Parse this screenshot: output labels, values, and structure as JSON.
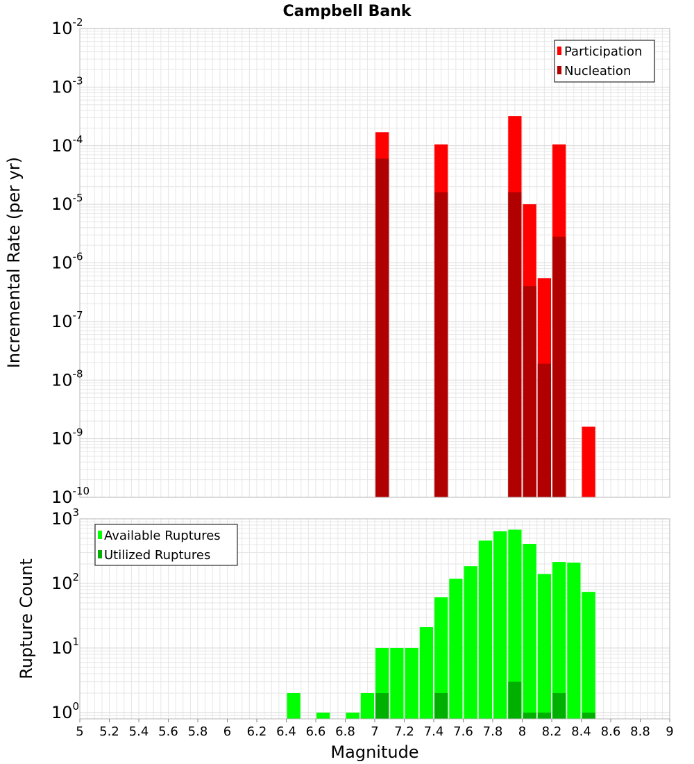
{
  "title": "Campbell Bank",
  "xlabel": "Magnitude",
  "x_ticks": [
    "5",
    "5.2",
    "5.4",
    "5.6",
    "5.8",
    "6",
    "6.2",
    "6.4",
    "6.6",
    "6.8",
    "7",
    "7.2",
    "7.4",
    "7.6",
    "7.8",
    "8",
    "8.2",
    "8.4",
    "8.6",
    "8.8",
    "9"
  ],
  "colors": {
    "participation": "#ff0000",
    "nucleation": "#b00000",
    "available": "#00ff00",
    "utilized": "#00b000",
    "grid": "#e6e6e6",
    "frame": "#b4b4b4"
  },
  "chart_data": [
    {
      "type": "bar",
      "ylabel": "Incremental Rate (per yr)",
      "yscale": "log",
      "xlim": [
        5,
        9
      ],
      "ylim": [
        1e-10,
        0.01
      ],
      "y_ticks_exp": [
        "-10",
        "-9",
        "-8",
        "-7",
        "-6",
        "-5",
        "-4",
        "-3",
        "-2"
      ],
      "grid": true,
      "legend_position": "top-right",
      "bar_width": 0.1,
      "series": [
        {
          "name": "Participation",
          "x": [
            7.05,
            7.45,
            7.95,
            8.05,
            8.15,
            8.25,
            8.45
          ],
          "values": [
            0.00017,
            0.000105,
            0.00032,
            1e-05,
            5.5e-07,
            0.000105,
            1.6e-09
          ]
        },
        {
          "name": "Nucleation",
          "x": [
            7.05,
            7.45,
            7.95,
            8.05,
            8.15,
            8.25
          ],
          "values": [
            6e-05,
            1.6e-05,
            1.6e-05,
            4e-07,
            1.9e-08,
            2.8e-06
          ]
        }
      ]
    },
    {
      "type": "bar",
      "ylabel": "Rupture Count",
      "yscale": "log",
      "xlim": [
        5,
        9
      ],
      "ylim": [
        0.8,
        1000
      ],
      "y_ticks_exp": [
        "0",
        "1",
        "2",
        "3"
      ],
      "grid": true,
      "legend_position": "top-left",
      "bar_width": 0.1,
      "series": [
        {
          "name": "Available Ruptures",
          "x": [
            6.45,
            6.65,
            6.85,
            6.95,
            7.05,
            7.15,
            7.25,
            7.35,
            7.45,
            7.55,
            7.65,
            7.75,
            7.85,
            7.95,
            8.05,
            8.15,
            8.25,
            8.35,
            8.45
          ],
          "values": [
            2,
            1,
            1,
            2,
            10,
            10,
            10,
            21,
            61,
            118,
            185,
            460,
            640,
            680,
            410,
            140,
            215,
            210,
            74
          ]
        },
        {
          "name": "Utilized Ruptures",
          "x": [
            7.05,
            7.45,
            7.95,
            8.05,
            8.15,
            8.25,
            8.45
          ],
          "values": [
            2,
            2,
            3,
            1,
            1,
            2,
            1
          ]
        }
      ]
    }
  ]
}
